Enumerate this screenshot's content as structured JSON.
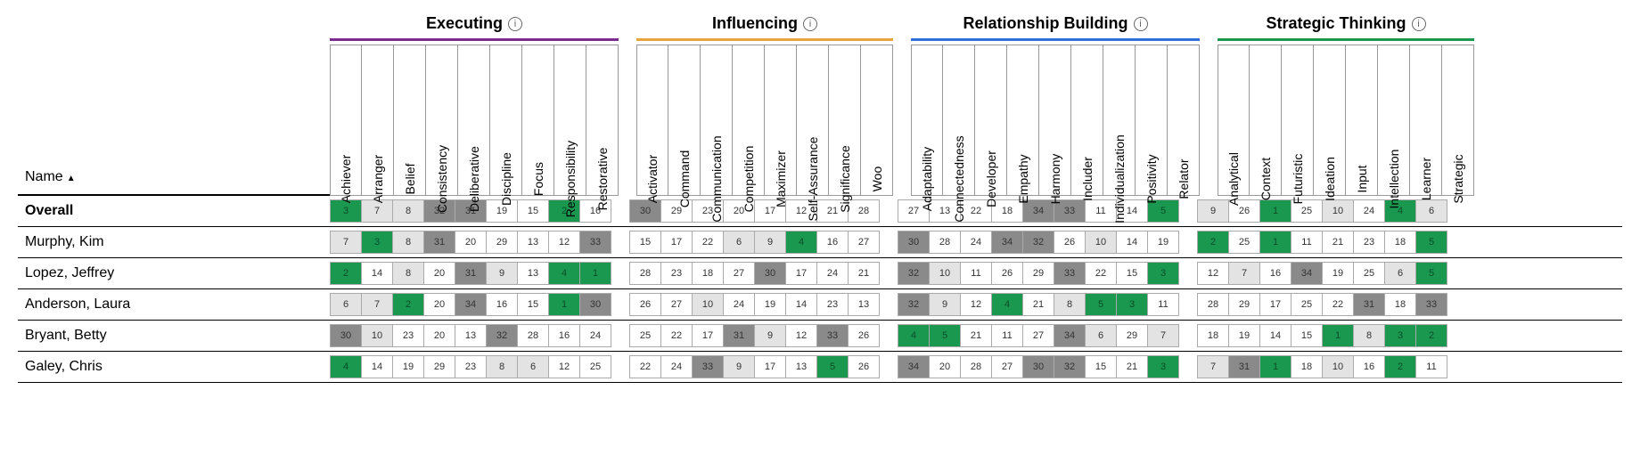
{
  "nameHeader": "Name",
  "colors": {
    "green": "#1a9850",
    "darkGrey": "#8a8a8a",
    "lightGrey": "#e3e3e3",
    "white": "#ffffff",
    "textOnGreen": "#0a4d26",
    "textOnDark": "#333333",
    "textDefault": "#333333"
  },
  "groupBarColors": {
    "Executing": "#7b2d8e",
    "Influencing": "#e8a33d",
    "Relationship Building": "#2e6fdb",
    "Strategic Thinking": "#1a9850"
  },
  "groups": [
    {
      "label": "Executing",
      "themes": [
        "Achiever",
        "Arranger",
        "Belief",
        "Consistency",
        "Deliberative",
        "Discipline",
        "Focus",
        "Responsibility",
        "Restorative"
      ]
    },
    {
      "label": "Influencing",
      "themes": [
        "Activator",
        "Command",
        "Communication",
        "Competition",
        "Maximizer",
        "Self-Assurance",
        "Significance",
        "Woo"
      ]
    },
    {
      "label": "Relationship Building",
      "themes": [
        "Adaptability",
        "Connectedness",
        "Developer",
        "Empathy",
        "Harmony",
        "Includer",
        "Individualization",
        "Positivity",
        "Relator"
      ]
    },
    {
      "label": "Strategic Thinking",
      "themes": [
        "Analytical",
        "Context",
        "Futuristic",
        "Ideation",
        "Input",
        "Intellection",
        "Learner",
        "Strategic"
      ]
    }
  ],
  "rows": [
    {
      "name": "Overall",
      "bold": true,
      "cells": [
        [
          [
            3,
            "g"
          ],
          [
            7,
            "l"
          ],
          [
            8,
            "l"
          ],
          [
            32,
            "d"
          ],
          [
            31,
            "d"
          ],
          [
            19,
            "w"
          ],
          [
            15,
            "w"
          ],
          [
            2,
            "g"
          ],
          [
            16,
            "w"
          ]
        ],
        [
          [
            30,
            "d"
          ],
          [
            29,
            "w"
          ],
          [
            23,
            "w"
          ],
          [
            20,
            "w"
          ],
          [
            17,
            "w"
          ],
          [
            12,
            "w"
          ],
          [
            21,
            "w"
          ],
          [
            28,
            "w"
          ]
        ],
        [
          [
            27,
            "w"
          ],
          [
            13,
            "w"
          ],
          [
            22,
            "w"
          ],
          [
            18,
            "w"
          ],
          [
            34,
            "d"
          ],
          [
            33,
            "d"
          ],
          [
            11,
            "w"
          ],
          [
            14,
            "w"
          ],
          [
            5,
            "g"
          ]
        ],
        [
          [
            9,
            "l"
          ],
          [
            26,
            "w"
          ],
          [
            1,
            "g"
          ],
          [
            25,
            "w"
          ],
          [
            10,
            "l"
          ],
          [
            24,
            "w"
          ],
          [
            4,
            "g"
          ],
          [
            6,
            "l"
          ]
        ]
      ]
    },
    {
      "name": "Murphy, Kim",
      "cells": [
        [
          [
            7,
            "l"
          ],
          [
            3,
            "g"
          ],
          [
            8,
            "l"
          ],
          [
            31,
            "d"
          ],
          [
            20,
            "w"
          ],
          [
            29,
            "w"
          ],
          [
            13,
            "w"
          ],
          [
            12,
            "w"
          ],
          [
            33,
            "d"
          ]
        ],
        [
          [
            15,
            "w"
          ],
          [
            17,
            "w"
          ],
          [
            22,
            "w"
          ],
          [
            6,
            "l"
          ],
          [
            9,
            "l"
          ],
          [
            4,
            "g"
          ],
          [
            16,
            "w"
          ],
          [
            27,
            "w"
          ]
        ],
        [
          [
            30,
            "d"
          ],
          [
            28,
            "w"
          ],
          [
            24,
            "w"
          ],
          [
            34,
            "d"
          ],
          [
            32,
            "d"
          ],
          [
            26,
            "w"
          ],
          [
            10,
            "l"
          ],
          [
            14,
            "w"
          ],
          [
            19,
            "w"
          ]
        ],
        [
          [
            2,
            "g"
          ],
          [
            25,
            "w"
          ],
          [
            1,
            "g"
          ],
          [
            11,
            "w"
          ],
          [
            21,
            "w"
          ],
          [
            23,
            "w"
          ],
          [
            18,
            "w"
          ],
          [
            5,
            "g"
          ]
        ]
      ]
    },
    {
      "name": "Lopez, Jeffrey",
      "cells": [
        [
          [
            2,
            "g"
          ],
          [
            14,
            "w"
          ],
          [
            8,
            "l"
          ],
          [
            20,
            "w"
          ],
          [
            31,
            "d"
          ],
          [
            9,
            "l"
          ],
          [
            13,
            "w"
          ],
          [
            4,
            "g"
          ],
          [
            1,
            "g"
          ]
        ],
        [
          [
            28,
            "w"
          ],
          [
            23,
            "w"
          ],
          [
            18,
            "w"
          ],
          [
            27,
            "w"
          ],
          [
            30,
            "d"
          ],
          [
            17,
            "w"
          ],
          [
            24,
            "w"
          ],
          [
            21,
            "w"
          ]
        ],
        [
          [
            32,
            "d"
          ],
          [
            10,
            "l"
          ],
          [
            11,
            "w"
          ],
          [
            26,
            "w"
          ],
          [
            29,
            "w"
          ],
          [
            33,
            "d"
          ],
          [
            22,
            "w"
          ],
          [
            15,
            "w"
          ],
          [
            3,
            "g"
          ]
        ],
        [
          [
            12,
            "w"
          ],
          [
            7,
            "l"
          ],
          [
            16,
            "w"
          ],
          [
            34,
            "d"
          ],
          [
            19,
            "w"
          ],
          [
            25,
            "w"
          ],
          [
            6,
            "l"
          ],
          [
            5,
            "g"
          ]
        ]
      ]
    },
    {
      "name": "Anderson, Laura",
      "cells": [
        [
          [
            6,
            "l"
          ],
          [
            7,
            "l"
          ],
          [
            2,
            "g"
          ],
          [
            20,
            "w"
          ],
          [
            34,
            "d"
          ],
          [
            16,
            "w"
          ],
          [
            15,
            "w"
          ],
          [
            1,
            "g"
          ],
          [
            30,
            "d"
          ]
        ],
        [
          [
            26,
            "w"
          ],
          [
            27,
            "w"
          ],
          [
            10,
            "l"
          ],
          [
            24,
            "w"
          ],
          [
            19,
            "w"
          ],
          [
            14,
            "w"
          ],
          [
            23,
            "w"
          ],
          [
            13,
            "w"
          ]
        ],
        [
          [
            32,
            "d"
          ],
          [
            9,
            "l"
          ],
          [
            12,
            "w"
          ],
          [
            4,
            "g"
          ],
          [
            21,
            "w"
          ],
          [
            8,
            "l"
          ],
          [
            5,
            "g"
          ],
          [
            3,
            "g"
          ],
          [
            11,
            "w"
          ]
        ],
        [
          [
            28,
            "w"
          ],
          [
            29,
            "w"
          ],
          [
            17,
            "w"
          ],
          [
            25,
            "w"
          ],
          [
            22,
            "w"
          ],
          [
            31,
            "d"
          ],
          [
            18,
            "w"
          ],
          [
            33,
            "d"
          ]
        ]
      ]
    },
    {
      "name": "Bryant, Betty",
      "cells": [
        [
          [
            30,
            "d"
          ],
          [
            10,
            "l"
          ],
          [
            23,
            "w"
          ],
          [
            20,
            "w"
          ],
          [
            13,
            "w"
          ],
          [
            32,
            "d"
          ],
          [
            28,
            "w"
          ],
          [
            16,
            "w"
          ],
          [
            24,
            "w"
          ]
        ],
        [
          [
            25,
            "w"
          ],
          [
            22,
            "w"
          ],
          [
            17,
            "w"
          ],
          [
            31,
            "d"
          ],
          [
            9,
            "l"
          ],
          [
            12,
            "w"
          ],
          [
            33,
            "d"
          ],
          [
            26,
            "w"
          ]
        ],
        [
          [
            4,
            "g"
          ],
          [
            5,
            "g"
          ],
          [
            21,
            "w"
          ],
          [
            11,
            "w"
          ],
          [
            27,
            "w"
          ],
          [
            34,
            "d"
          ],
          [
            6,
            "l"
          ],
          [
            29,
            "w"
          ],
          [
            7,
            "l"
          ]
        ],
        [
          [
            18,
            "w"
          ],
          [
            19,
            "w"
          ],
          [
            14,
            "w"
          ],
          [
            15,
            "w"
          ],
          [
            1,
            "g"
          ],
          [
            8,
            "l"
          ],
          [
            3,
            "g"
          ],
          [
            2,
            "g"
          ]
        ]
      ]
    },
    {
      "name": "Galey, Chris",
      "cells": [
        [
          [
            4,
            "g"
          ],
          [
            14,
            "w"
          ],
          [
            19,
            "w"
          ],
          [
            29,
            "w"
          ],
          [
            23,
            "w"
          ],
          [
            8,
            "l"
          ],
          [
            6,
            "l"
          ],
          [
            12,
            "w"
          ],
          [
            25,
            "w"
          ]
        ],
        [
          [
            22,
            "w"
          ],
          [
            24,
            "w"
          ],
          [
            33,
            "d"
          ],
          [
            9,
            "l"
          ],
          [
            17,
            "w"
          ],
          [
            13,
            "w"
          ],
          [
            5,
            "g"
          ],
          [
            26,
            "w"
          ]
        ],
        [
          [
            34,
            "d"
          ],
          [
            20,
            "w"
          ],
          [
            28,
            "w"
          ],
          [
            27,
            "w"
          ],
          [
            30,
            "d"
          ],
          [
            32,
            "d"
          ],
          [
            15,
            "w"
          ],
          [
            21,
            "w"
          ],
          [
            3,
            "g"
          ]
        ],
        [
          [
            7,
            "l"
          ],
          [
            31,
            "d"
          ],
          [
            1,
            "g"
          ],
          [
            18,
            "w"
          ],
          [
            10,
            "l"
          ],
          [
            16,
            "w"
          ],
          [
            2,
            "g"
          ],
          [
            11,
            "w"
          ]
        ]
      ]
    }
  ]
}
